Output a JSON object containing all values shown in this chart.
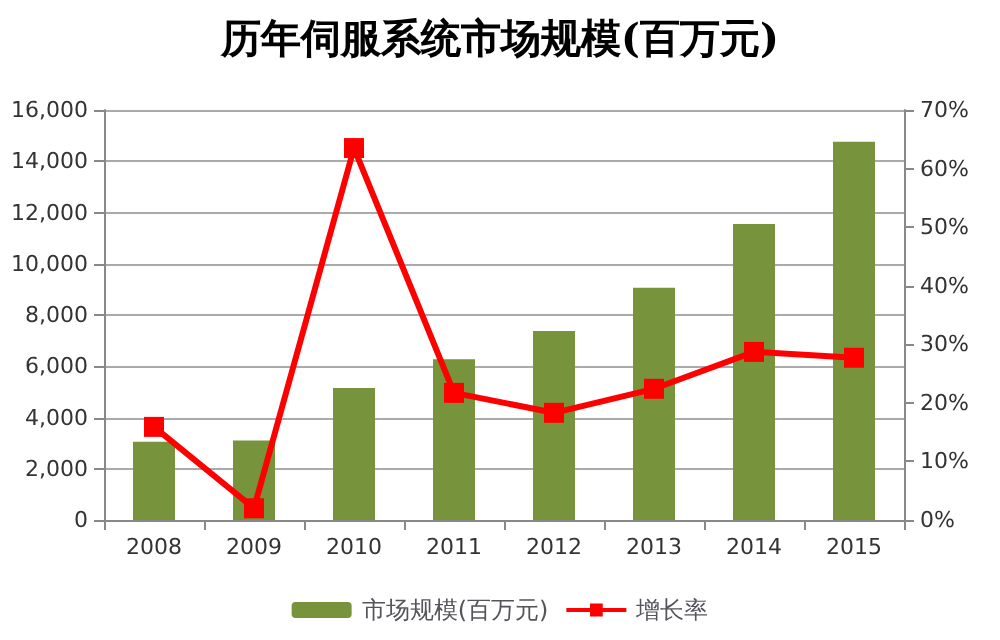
{
  "chart_data": {
    "type": "bar",
    "title": "历年伺服系统市场规模(百万元)",
    "categories": [
      "2008",
      "2009",
      "2010",
      "2011",
      "2012",
      "2013",
      "2014",
      "2015"
    ],
    "series": [
      {
        "name": "市场规模(百万元)",
        "color": "#77933c",
        "values": [
          3050,
          3100,
          5150,
          6270,
          7380,
          9060,
          11550,
          14760
        ]
      },
      {
        "name": "增长率",
        "type": "line",
        "axis": "y2",
        "color": "#ff0000",
        "marker": "square",
        "values": [
          15.9,
          2.0,
          63.5,
          21.7,
          18.3,
          22.4,
          28.7,
          27.7
        ]
      }
    ],
    "ylim": [
      0,
      16000
    ],
    "yticks": [
      0,
      {
        "value": 2000,
        "label": "2,000"
      },
      {
        "value": 4000,
        "label": "4,000"
      },
      {
        "value": 6000,
        "label": "6,000"
      },
      {
        "value": 8000,
        "label": "8,000"
      },
      {
        "value": 10000,
        "label": "10,000"
      },
      {
        "value": 12000,
        "label": "12,000"
      },
      {
        "value": 14000,
        "label": "14,000"
      },
      {
        "value": 16000,
        "label": "16,000"
      }
    ],
    "y2lim": [
      0,
      70
    ],
    "y2ticks": [
      {
        "value": 0,
        "label": "0%"
      },
      {
        "value": 10,
        "label": "10%"
      },
      {
        "value": 20,
        "label": "20%"
      },
      {
        "value": 30,
        "label": "30%"
      },
      {
        "value": 40,
        "label": "40%"
      },
      {
        "value": 50,
        "label": "50%"
      },
      {
        "value": 60,
        "label": "60%"
      },
      {
        "value": 70,
        "label": "70%"
      }
    ],
    "grid": "y",
    "legend": "bottom"
  }
}
